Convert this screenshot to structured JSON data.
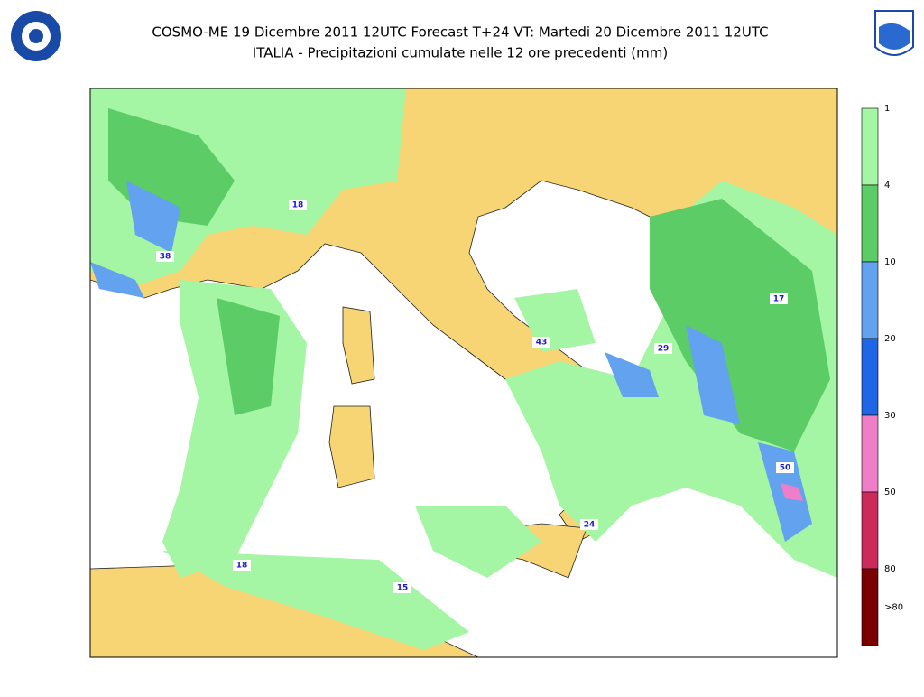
{
  "header": {
    "title": "COSMO-ME 19 Dicembre 2011 12UTC Forecast T+24 VT: Martedi 20 Dicembre 2011 12UTC",
    "subtitle": "ITALIA - Precipitazioni cumulate nelle 12 ore precedenti (mm)"
  },
  "legend": {
    "labels": [
      "1",
      "4",
      "10",
      "20",
      "30",
      "50",
      "80",
      ">80"
    ],
    "colors": [
      "#a4f5a4",
      "#5ccc66",
      "#62a2ee",
      "#1f66e6",
      "#ef7ec8",
      "#cc2a5a",
      "#7a0000"
    ]
  },
  "map_labels": [
    "18",
    "38",
    "43",
    "29",
    "17",
    "50",
    "24",
    "18",
    "15"
  ]
}
